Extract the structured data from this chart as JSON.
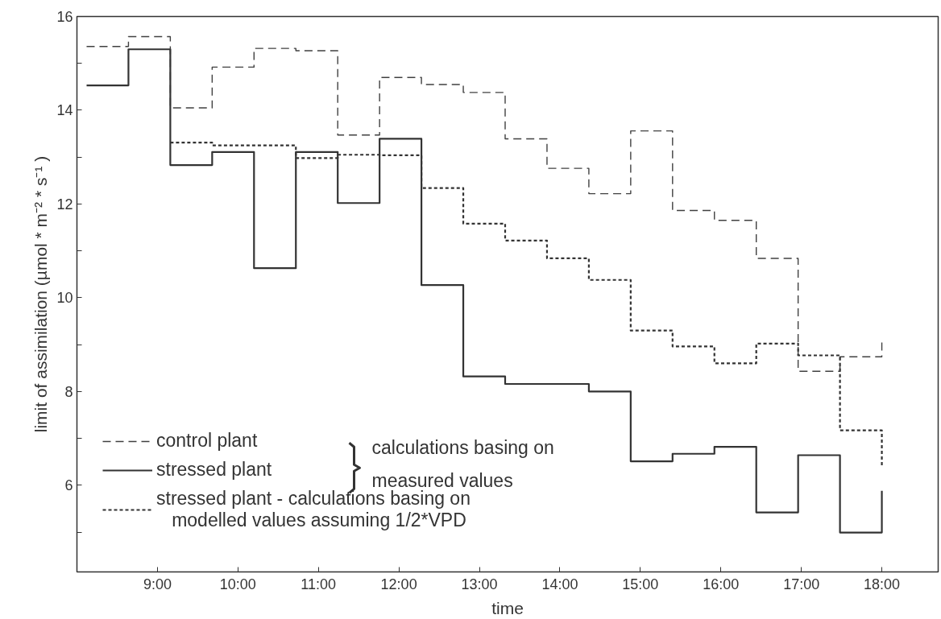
{
  "chart_data": {
    "type": "step",
    "xlabel": "time",
    "ylabel": "limit of assimilation (µmol * m⁻² * s⁻¹ )",
    "x": [
      8.12,
      8.64,
      9.16,
      9.68,
      10.2,
      10.72,
      11.24,
      11.76,
      12.28,
      12.8,
      13.32,
      13.84,
      14.36,
      14.88,
      15.4,
      15.92,
      16.44,
      16.96,
      17.48,
      18.0
    ],
    "series": [
      {
        "name": "control plant",
        "color": "#404040",
        "line_style": "dashed",
        "values": [
          15.36,
          15.57,
          14.05,
          14.92,
          15.32,
          15.27,
          13.47,
          14.7,
          14.55,
          14.38,
          13.39,
          12.76,
          12.22,
          13.56,
          11.86,
          11.65,
          10.84,
          8.43,
          8.74,
          9.09
        ]
      },
      {
        "name": "stressed plant",
        "color": "#333333",
        "line_style": "solid",
        "values": [
          14.53,
          15.3,
          12.83,
          13.11,
          10.63,
          13.11,
          12.02,
          13.39,
          10.27,
          8.32,
          8.16,
          8.16,
          8.0,
          6.51,
          6.67,
          6.82,
          5.42,
          6.64,
          4.99,
          5.88
        ]
      },
      {
        "name": "stressed plant - calculations basing on\n   modelled values assuming 1/2*VPD",
        "color": "#333333",
        "line_style": "dotted",
        "values": [
          null,
          null,
          13.31,
          13.25,
          13.25,
          12.98,
          13.05,
          13.04,
          12.34,
          11.58,
          11.22,
          10.84,
          10.38,
          9.3,
          8.96,
          8.6,
          9.02,
          8.77,
          7.17,
          6.39
        ]
      }
    ],
    "annotations": [
      "calculations basing on\nmeasured values"
    ],
    "xlim": [
      8.0,
      18.7
    ],
    "ylim": [
      4.15,
      16
    ],
    "xticks": [
      {
        "value": 9,
        "label": "9:00"
      },
      {
        "value": 10,
        "label": "10:00"
      },
      {
        "value": 11,
        "label": "11:00"
      },
      {
        "value": 12,
        "label": "12:00"
      },
      {
        "value": 13,
        "label": "13:00"
      },
      {
        "value": 14,
        "label": "14:00"
      },
      {
        "value": 15,
        "label": "15:00"
      },
      {
        "value": 16,
        "label": "16:00"
      },
      {
        "value": 17,
        "label": "17:00"
      },
      {
        "value": 18,
        "label": "18:00"
      }
    ],
    "yticks": [
      {
        "value": 5,
        "label": null
      },
      6,
      {
        "value": 7,
        "label": null
      },
      8,
      {
        "value": 9,
        "label": null
      },
      10,
      {
        "value": 11,
        "label": null
      },
      12,
      {
        "value": 13,
        "label": null
      },
      14,
      {
        "value": 15,
        "label": null
      },
      16
    ],
    "grid": false,
    "legend": "bottom left",
    "marker": "none"
  }
}
